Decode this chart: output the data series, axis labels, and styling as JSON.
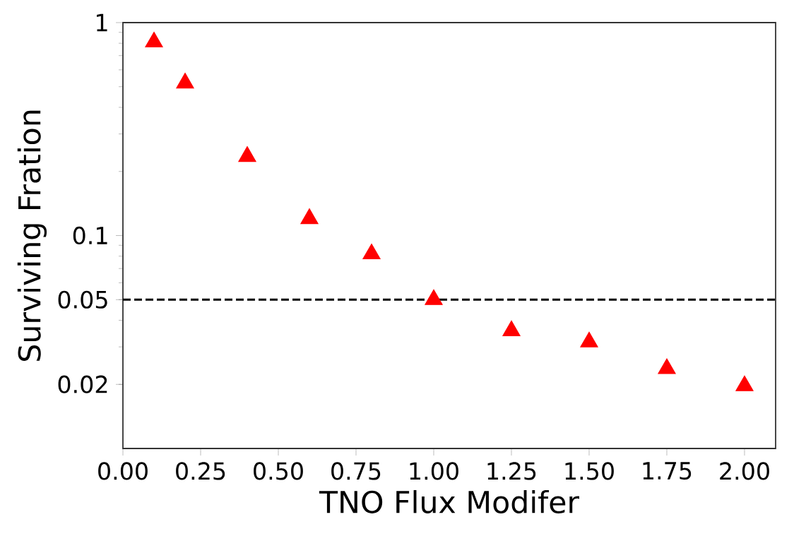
{
  "chart_data": {
    "type": "scatter",
    "xlabel": "TNO Flux Modifer",
    "ylabel": "Surviving Fration",
    "x": [
      0.1,
      0.2,
      0.4,
      0.6,
      0.8,
      1.0,
      1.25,
      1.5,
      1.75,
      2.0
    ],
    "series": [
      {
        "color": "#ff0000",
        "values": [
          0.81,
          0.52,
          0.235,
          0.12,
          0.082,
          0.05,
          0.0357,
          0.0316,
          0.0237,
          0.0197
        ]
      }
    ],
    "marker": "triangle",
    "log": "y",
    "xlim": [
      0,
      2.1
    ],
    "ylim": [
      0.01,
      1
    ],
    "xticks": [
      {
        "value": 0,
        "label": "0.00"
      },
      {
        "value": 0.25,
        "label": "0.25"
      },
      {
        "value": 0.5,
        "label": "0.50"
      },
      {
        "value": 0.75,
        "label": "0.75"
      },
      {
        "value": 1,
        "label": "1.00"
      },
      {
        "value": 1.25,
        "label": "1.25"
      },
      {
        "value": 1.5,
        "label": "1.50"
      },
      {
        "value": 1.75,
        "label": "1.75"
      },
      {
        "value": 2,
        "label": "2.00"
      }
    ],
    "yticks": [
      0.02,
      0.05,
      0.1,
      1
    ],
    "ref_lines": [
      {
        "axis": "y",
        "value": 0.05,
        "color": "#000000",
        "line_style": "dashed"
      }
    ]
  }
}
